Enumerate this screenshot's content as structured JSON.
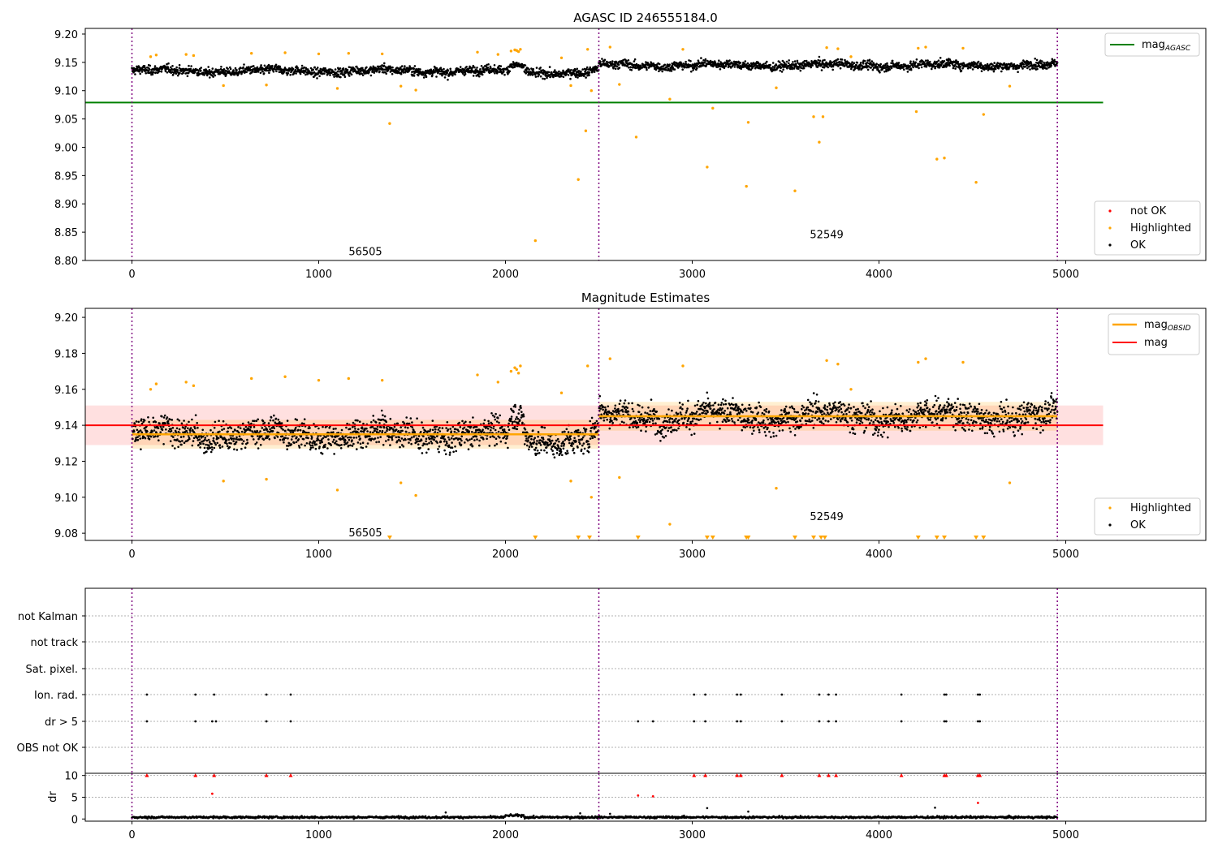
{
  "chart_data": [
    {
      "type": "scatter",
      "title": "AGASC ID 246555184.0",
      "xlim": [
        -250,
        5750
      ],
      "ylim": [
        8.8,
        9.21
      ],
      "xticks": [
        "0",
        "1000",
        "2000",
        "3000",
        "4000",
        "5000"
      ],
      "yticks": [
        "8.80",
        "8.85",
        "8.90",
        "8.95",
        "9.00",
        "9.05",
        "9.10",
        "9.15",
        "9.20"
      ],
      "obs_boundaries": [
        0,
        2500,
        4955
      ],
      "obsids": [
        {
          "label": "56505",
          "x": 1250,
          "y": 8.815
        },
        {
          "label": "52549",
          "x": 3720,
          "y": 8.845
        }
      ],
      "mag_agasc": {
        "value": 9.079,
        "x_range": [
          -250,
          5200
        ]
      },
      "segments": [
        {
          "x_start": 0,
          "x_end": 2500,
          "center": 9.135,
          "spread": 0.0065,
          "color": "#000000"
        },
        {
          "x_start": 2500,
          "x_end": 4955,
          "center": 9.145,
          "spread": 0.0065,
          "color": "#000000"
        }
      ],
      "series": [
        {
          "name": "not OK",
          "color": "#ff0000"
        },
        {
          "name": "Highlighted",
          "color": "#ffa500",
          "x": [
            100,
            130,
            290,
            330,
            490,
            640,
            720,
            820,
            1000,
            1100,
            1160,
            1340,
            1380,
            1440,
            1520,
            1850,
            1960,
            2030,
            2050,
            2060,
            2070,
            2080,
            2160,
            2300,
            2350,
            2390,
            2430,
            2440,
            2460,
            2560,
            2610,
            2700,
            2880,
            2950,
            3080,
            3110,
            3290,
            3300,
            3450,
            3550,
            3650,
            3680,
            3700,
            3720,
            3780,
            3850,
            4200,
            4210,
            4250,
            4310,
            4350,
            4450,
            4520,
            4560,
            4700
          ],
          "y": [
            9.16,
            9.163,
            9.164,
            9.162,
            9.109,
            9.166,
            9.11,
            9.167,
            9.165,
            9.104,
            9.166,
            9.165,
            9.042,
            9.108,
            9.101,
            9.168,
            9.164,
            9.17,
            9.172,
            9.171,
            9.169,
            9.173,
            8.835,
            9.158,
            9.109,
            8.943,
            9.029,
            9.173,
            9.1,
            9.177,
            9.111,
            9.018,
            9.085,
            9.173,
            8.965,
            9.069,
            8.931,
            9.044,
            9.105,
            8.923,
            9.054,
            9.009,
            9.054,
            9.176,
            9.174,
            9.16,
            9.063,
            9.175,
            9.177,
            8.979,
            8.981,
            9.175,
            8.938,
            9.058,
            9.108
          ]
        },
        {
          "name": "OK",
          "color": "#000000"
        }
      ],
      "legend": {
        "placement": "top-right and bottom-right",
        "line_label_base": "mag",
        "line_label_sub": "AGASC",
        "line_color": "#008000"
      }
    },
    {
      "type": "scatter",
      "title": "Magnitude Estimates",
      "xlim": [
        -250,
        5750
      ],
      "ylim": [
        9.076,
        9.205
      ],
      "xticks": [
        "0",
        "1000",
        "2000",
        "3000",
        "4000",
        "5000"
      ],
      "yticks": [
        "9.08",
        "9.10",
        "9.12",
        "9.14",
        "9.16",
        "9.18",
        "9.20"
      ],
      "obs_boundaries": [
        0,
        2500,
        4955
      ],
      "obsids": [
        {
          "label": "56505",
          "x": 1250,
          "y": 9.08
        },
        {
          "label": "52549",
          "x": 3720,
          "y": 9.089
        }
      ],
      "mag": {
        "value": 9.14,
        "band": [
          9.129,
          9.151
        ],
        "x_range": [
          -250,
          5200
        ],
        "color": "#ff0000"
      },
      "mag_obsid": [
        {
          "x_range": [
            0,
            2500
          ],
          "value": 9.135,
          "band": [
            9.127,
            9.143
          ]
        },
        {
          "x_range": [
            2500,
            4955
          ],
          "value": 9.145,
          "band": [
            9.137,
            9.153
          ]
        }
      ],
      "below_range_markers_x": [
        1380,
        2160,
        2390,
        2450,
        2710,
        3080,
        3110,
        3290,
        3300,
        3550,
        3650,
        3690,
        3710,
        4210,
        4310,
        4350,
        4520,
        4560
      ],
      "series": [
        {
          "name": "Highlighted",
          "color": "#ffa500"
        },
        {
          "name": "OK",
          "color": "#000000"
        }
      ],
      "legend": {
        "placement": "top-right and bottom-right",
        "obsid_label_base": "mag",
        "obsid_label_sub": "OBSID",
        "mag_label": "mag"
      }
    },
    {
      "type": "scatter",
      "title": "",
      "xlim": [
        -250,
        5750
      ],
      "categories": [
        "not Kalman",
        "not track",
        "Sat. pixel.",
        "Ion. rad.",
        "dr > 5",
        "OBS not OK"
      ],
      "flags": {
        "Ion. rad.": [
          80,
          340,
          440,
          720,
          850,
          3010,
          3070,
          3240,
          3260,
          3480,
          3680,
          3730,
          3770,
          4120,
          4350,
          4360,
          4530,
          4540
        ],
        "dr > 5": [
          80,
          340,
          430,
          450,
          720,
          850,
          2710,
          2790,
          3010,
          3070,
          3240,
          3260,
          3480,
          3680,
          3730,
          3770,
          4120,
          4350,
          4360,
          4530,
          4540
        ]
      },
      "obs_boundaries": [
        0,
        2500,
        4955
      ]
    },
    {
      "type": "scatter",
      "title": "",
      "xlim": [
        -250,
        5750
      ],
      "ylim": [
        -0.5,
        10.5
      ],
      "xticks": [
        "0",
        "1000",
        "2000",
        "3000",
        "4000",
        "5000"
      ],
      "yticks": [
        "0",
        "5",
        "10"
      ],
      "ylabel": "dr",
      "clipped_markers_x": [
        80,
        340,
        440,
        720,
        850,
        3010,
        3070,
        3240,
        3260,
        3480,
        3680,
        3730,
        3770,
        4120,
        4350,
        4360,
        4530,
        4540
      ],
      "red_points": [
        {
          "x": 430,
          "y": 5.8
        },
        {
          "x": 2710,
          "y": 5.4
        },
        {
          "x": 2790,
          "y": 5.2
        },
        {
          "x": 4530,
          "y": 3.7
        }
      ],
      "outliers": [
        {
          "x": 3080,
          "y": 2.5
        },
        {
          "x": 4300,
          "y": 2.6
        },
        {
          "x": 1680,
          "y": 1.5
        },
        {
          "x": 2400,
          "y": 1.3
        },
        {
          "x": 3300,
          "y": 1.7
        },
        {
          "x": 2560,
          "y": 1.2
        }
      ],
      "baseline": {
        "center": 0.4,
        "spread": 0.2
      },
      "obs_boundaries": [
        0,
        2500,
        4955
      ]
    }
  ]
}
